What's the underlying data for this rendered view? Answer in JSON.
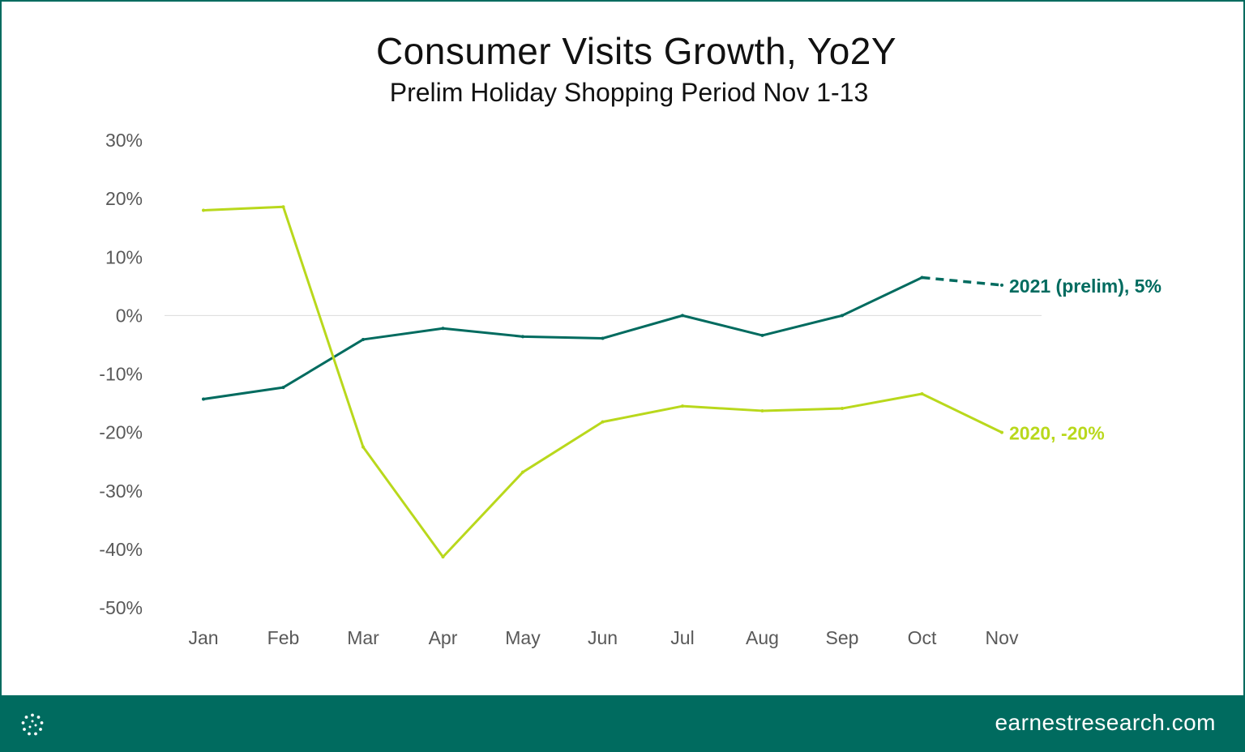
{
  "brand": {
    "accent": "#006b5f",
    "url": "earnestresearch.com",
    "logo_icon": "dotted-circle-logo-icon"
  },
  "chart_data": {
    "type": "line",
    "title": "Consumer Visits Growth, Yo2Y",
    "subtitle": "Prelim Holiday Shopping Period Nov 1-13",
    "xlabel": "",
    "ylabel": "",
    "categories": [
      "Jan",
      "Feb",
      "Mar",
      "Apr",
      "May",
      "Jun",
      "Jul",
      "Aug",
      "Sep",
      "Oct",
      "Nov"
    ],
    "ylim": [
      -50,
      30
    ],
    "yticks": [
      30,
      20,
      10,
      0,
      -10,
      -20,
      -30,
      -40,
      -50
    ],
    "ytick_labels": [
      "30%",
      "20%",
      "10%",
      "0%",
      "-10%",
      "-20%",
      "-30%",
      "-40%",
      "-50%"
    ],
    "grid": false,
    "zero_line": true,
    "series": [
      {
        "key": "s2021",
        "values": [
          -14.3,
          -12.3,
          -4.1,
          -2.2,
          -3.6,
          -3.9,
          0.0,
          -3.4,
          0.0,
          6.5,
          5.2
        ],
        "dashed_from_index": 9,
        "color": "#006b5f",
        "end_label": "2021 (prelim), 5%"
      },
      {
        "key": "s2020",
        "values": [
          18.0,
          18.6,
          -22.5,
          -41.3,
          -26.8,
          -18.2,
          -15.5,
          -16.3,
          -15.9,
          -13.4,
          -20.0
        ],
        "dashed_from_index": null,
        "color": "#b9d81c",
        "end_label": "2020, -20%"
      }
    ]
  }
}
